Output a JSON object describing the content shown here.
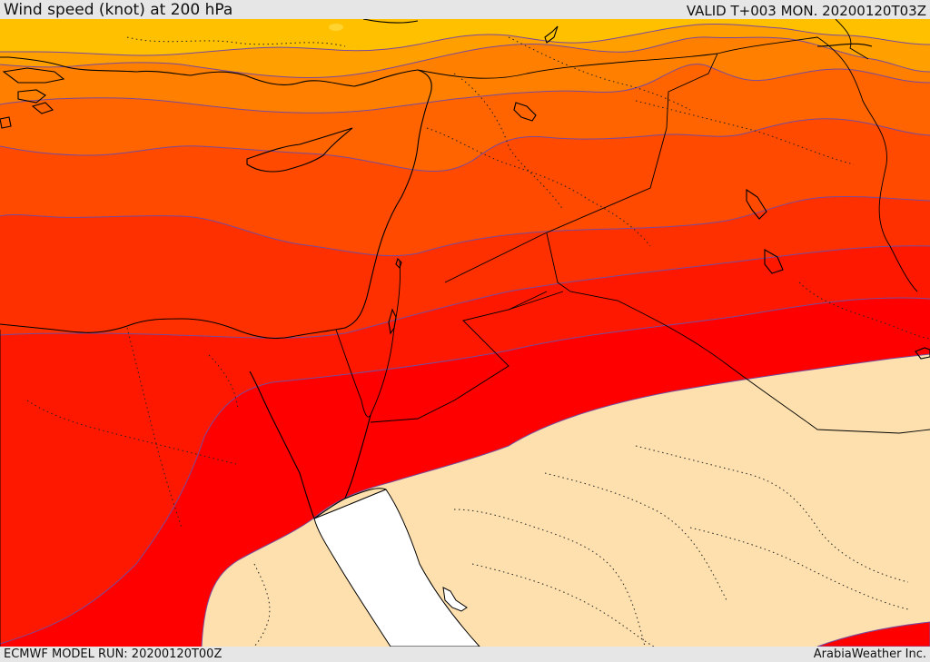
{
  "header": {
    "title": "Wind speed (knot) at 200 hPa",
    "valid": "VALID T+003 MON. 20200120T03Z"
  },
  "footer": {
    "model_run": "ECMWF MODEL RUN: 20200120T00Z",
    "credit": "ArabiaWeather Inc."
  },
  "map": {
    "colors": {
      "calm_land": "#fde0ae",
      "sea": "#ffffff",
      "band_1": "#ffc000",
      "band_2": "#ffa000",
      "band_3": "#ff8000",
      "band_4": "#ff6400",
      "band_5": "#ff4a00",
      "band_6": "#ff3000",
      "band_7": "#ff1800",
      "band_8": "#ff0000",
      "contour": "#7a4a9a",
      "coastline": "#000000",
      "border": "#000000"
    }
  }
}
